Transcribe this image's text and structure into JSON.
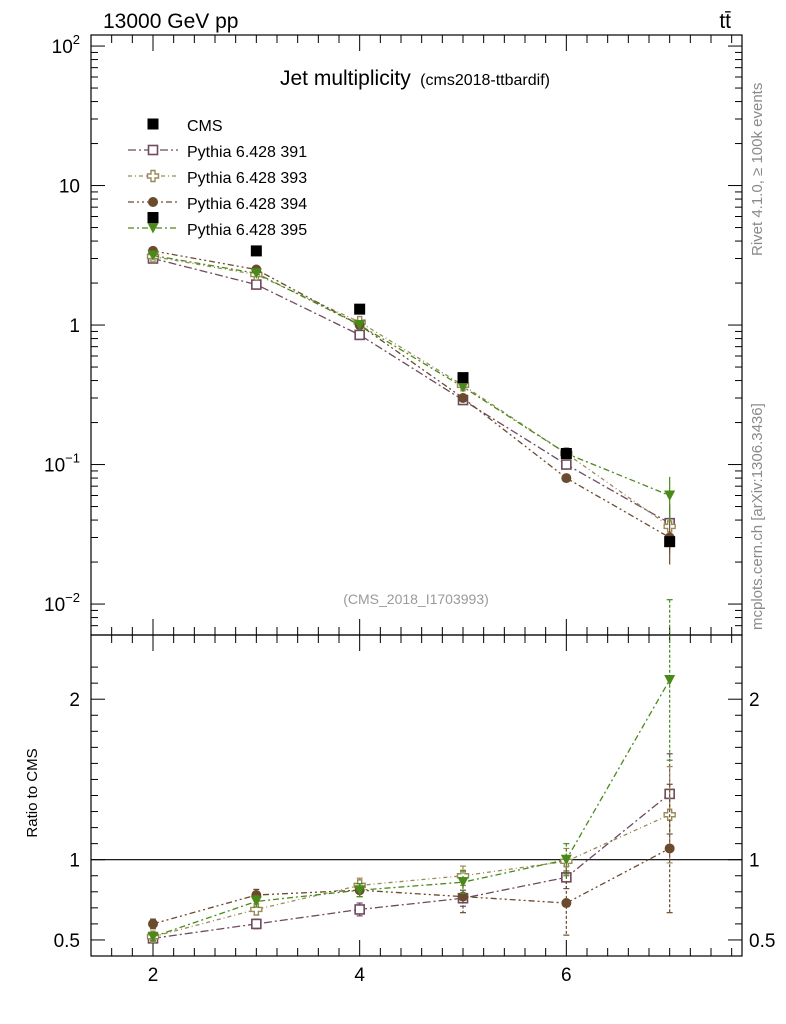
{
  "header": {
    "energy_label": "13000 GeV pp",
    "process_label": "tt̄"
  },
  "side_labels": {
    "rivet_label": "Rivet 4.1.0, ≥ 100k events",
    "source_label": "mcplots.cern.ch [arXiv:1306.3436]"
  },
  "chart_data": {
    "type": "scatter",
    "title": "Jet multiplicity",
    "subtitle": "(cms2018-ttbardif)",
    "watermark": "(CMS_2018_I1703993)",
    "xlabel": "",
    "ylabel_main": "",
    "ylabel_ratio": "Ratio to CMS",
    "xlim": [
      1.4,
      7.7
    ],
    "ylim_main": [
      0.006,
      120
    ],
    "ylim_ratio": [
      0.4,
      2.4
    ],
    "ylog_main": true,
    "x_ticks": [
      "2",
      "4",
      "6"
    ],
    "y_ticks_main": [
      {
        "base": "10",
        "exp": "2"
      },
      {
        "base": "10",
        "exp": ""
      },
      {
        "base": "1",
        "exp": ""
      },
      {
        "base": "10",
        "exp": "−1"
      },
      {
        "base": "10",
        "exp": "−2"
      }
    ],
    "y_ticks_ratio": [
      "2",
      "1",
      "0.5"
    ],
    "reference": {
      "name": "CMS",
      "x": [
        2,
        3,
        4,
        5,
        6,
        7
      ],
      "values": [
        5.9,
        3.4,
        1.3,
        0.42,
        0.12,
        0.028
      ],
      "color": "#000000"
    },
    "series": [
      {
        "name": "Pythia 6.428 391",
        "color": "#6e4a5e",
        "marker": "open-square",
        "values": [
          3.0,
          1.95,
          0.85,
          0.29,
          0.1,
          0.038
        ],
        "ratio": [
          0.51,
          0.6,
          0.69,
          0.76,
          0.89,
          1.41
        ],
        "ratio_err": [
          0.025,
          0.03,
          0.04,
          0.05,
          0.07,
          0.25
        ]
      },
      {
        "name": "Pythia 6.428 393",
        "color": "#9a8a5a",
        "marker": "open-cross",
        "values": [
          3.1,
          2.3,
          1.05,
          0.37,
          0.12,
          0.036
        ],
        "ratio": [
          0.52,
          0.69,
          0.84,
          0.9,
          0.99,
          1.28
        ],
        "ratio_err": [
          0.025,
          0.035,
          0.045,
          0.06,
          0.08,
          0.3
        ]
      },
      {
        "name": "Pythia 6.428 394",
        "color": "#6b4b2e",
        "marker": "filled-circle",
        "values": [
          3.4,
          2.5,
          1.0,
          0.3,
          0.08,
          0.03
        ],
        "ratio": [
          0.6,
          0.78,
          0.81,
          0.77,
          0.73,
          1.07
        ],
        "ratio_err": [
          0.03,
          0.035,
          0.04,
          0.1,
          0.2,
          0.4
        ]
      },
      {
        "name": "Pythia 6.428 395",
        "color": "#4a8a1a",
        "marker": "filled-triangle-down",
        "values": [
          3.15,
          2.35,
          1.0,
          0.36,
          0.12,
          0.06
        ],
        "ratio": [
          0.52,
          0.74,
          0.81,
          0.86,
          1.0,
          2.12
        ],
        "ratio_err": [
          0.025,
          0.035,
          0.04,
          0.07,
          0.1,
          0.5
        ]
      }
    ]
  }
}
